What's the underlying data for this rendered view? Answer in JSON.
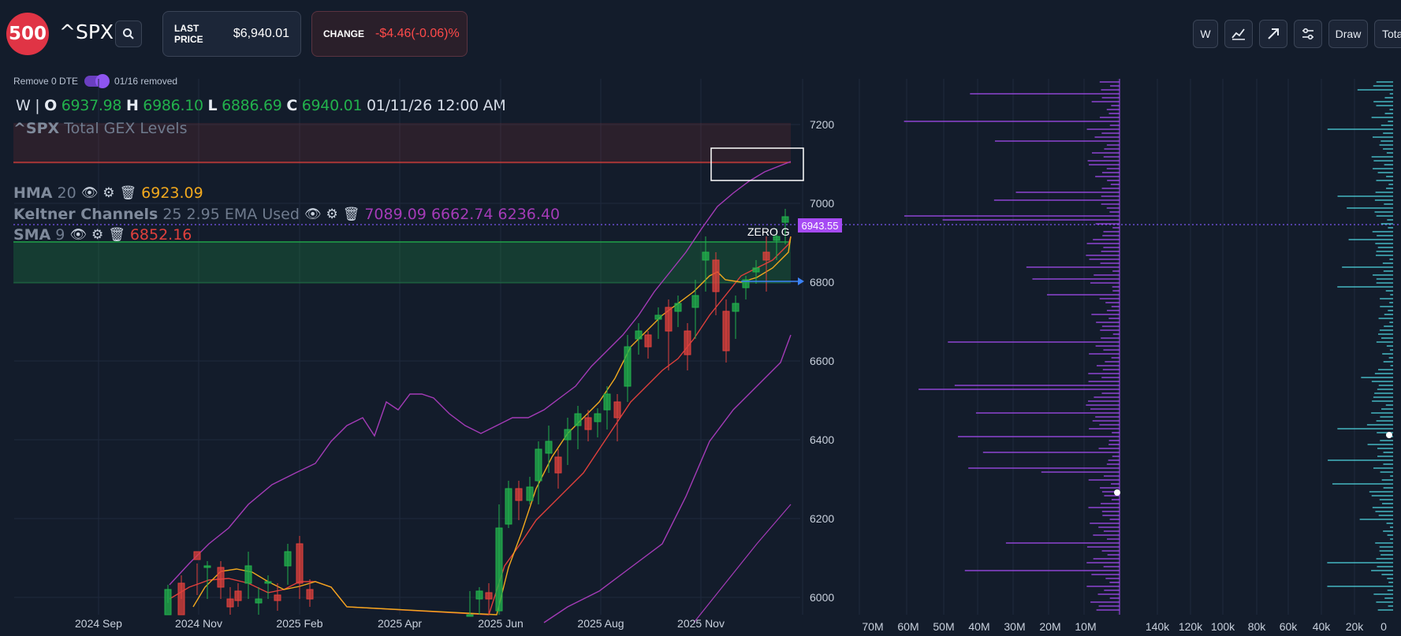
{
  "header": {
    "logo_text": "500",
    "ticker": "^SPX",
    "last_price_label": "LAST PRICE",
    "last_price_value": "$6,940.01",
    "change_label": "CHANGE",
    "change_value": "-$4.46(-0.06)%",
    "tools": [
      "W",
      "chart-icon",
      "arrow-icon",
      "sliders-icon",
      "Draw",
      "Total"
    ]
  },
  "toggle": {
    "label": "Remove 0 DTE",
    "status": "01/16 removed",
    "on": true
  },
  "ohlc": {
    "interval": "W",
    "open_key": "O",
    "open": "6937.98",
    "high_key": "H",
    "high": "6986.10",
    "low_key": "L",
    "low": "6886.69",
    "close_key": "C",
    "close": "6940.01",
    "datetime": "01/11/26 12:00 AM"
  },
  "overlay_title": {
    "ticker": "^SPX",
    "text": "Total GEX Levels"
  },
  "indicators": {
    "hma": {
      "name": "HMA",
      "params": "20",
      "value": "6923.09"
    },
    "keltner": {
      "name": "Keltner Channels",
      "params": "25 2.95 EMA Used",
      "value": "7089.09 6662.74 6236.40"
    },
    "sma": {
      "name": "SMA",
      "params": "9",
      "value": "6852.16"
    }
  },
  "price_marker": "6943.55",
  "zero_gamma_label": "ZERO G",
  "price_axis": [
    "7200",
    "7000",
    "6800",
    "6600",
    "6400",
    "6200",
    "6000"
  ],
  "time_axis": [
    "2024 Sep",
    "2024 Nov",
    "2025 Feb",
    "2025 Apr",
    "2025 Jun",
    "2025 Aug",
    "2025 Nov"
  ],
  "gex_axis_left": [
    "70M",
    "60M",
    "50M",
    "40M",
    "30M",
    "20M",
    "10M"
  ],
  "gex_axis_right": [
    "140k",
    "120k",
    "100k",
    "80k",
    "60k",
    "40k",
    "20k",
    "0"
  ],
  "colors": {
    "up": "#22b14c",
    "down": "#e0403c",
    "accent": "#a64bf4",
    "gex": "#a64bf4",
    "oi": "#4fd6e0",
    "background": "#131c2b"
  },
  "chart_data": {
    "type": "candlestick",
    "interval": "W",
    "y_range": [
      5960,
      7320
    ],
    "levels": {
      "resistance_band": [
        7100,
        7200
      ],
      "support_band": [
        6800,
        6900
      ],
      "zero_gamma": 6943.55
    },
    "candles": [
      [
        6880,
        6890,
        6870,
        6885
      ],
      [
        6885,
        6930,
        6880,
        6920
      ],
      [
        6920,
        6940,
        6890,
        6900
      ],
      [
        6900,
        6950,
        6890,
        6945
      ],
      [
        6945,
        6990,
        6880,
        6940
      ]
    ]
  }
}
